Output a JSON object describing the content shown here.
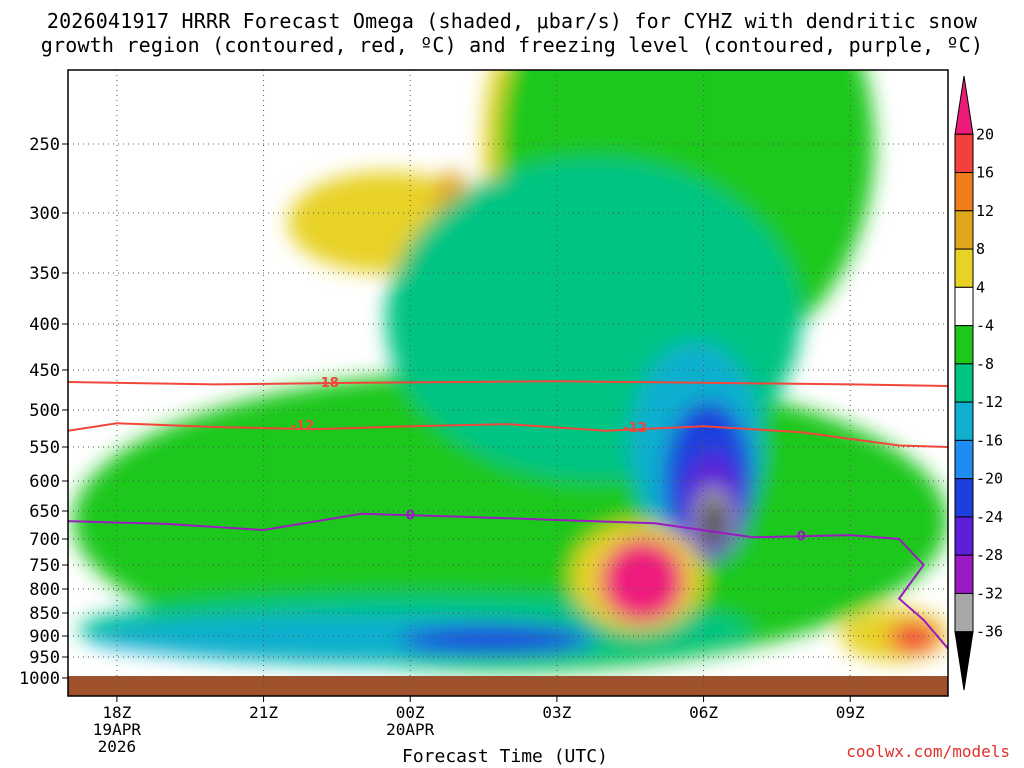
{
  "title_line1": "2026041917 HRRR Forecast Omega (shaded, μbar/s) for CYHZ with dendritic snow",
  "title_line2": "growth region (contoured, red, ºC) and freezing level (contoured, purple, ºC)",
  "credit": "coolwx.com/models",
  "colors": {
    "ground": "#a0522d",
    "temp_contour": "#f0463c",
    "freezing_contour": "#9a1bbf",
    "grid": "#555555"
  },
  "chart_data": {
    "type": "heatmap",
    "xlabel": "Forecast Time (UTC)",
    "ylabel": "",
    "x_ticks": [
      {
        "hour": 1,
        "label": "18Z",
        "sub1": "19APR",
        "sub2": "2026"
      },
      {
        "hour": 4,
        "label": "21Z",
        "sub1": "",
        "sub2": ""
      },
      {
        "hour": 7,
        "label": "00Z",
        "sub1": "20APR",
        "sub2": ""
      },
      {
        "hour": 10,
        "label": "03Z",
        "sub1": "",
        "sub2": ""
      },
      {
        "hour": 13,
        "label": "06Z",
        "sub1": "",
        "sub2": ""
      },
      {
        "hour": 16,
        "label": "09Z",
        "sub1": "",
        "sub2": ""
      }
    ],
    "xlim": [
      0,
      18
    ],
    "y_ticks": [
      250,
      300,
      350,
      400,
      450,
      500,
      550,
      600,
      650,
      700,
      750,
      800,
      850,
      900,
      950,
      1000
    ],
    "ylim": [
      1000,
      200
    ],
    "colorbar": {
      "labels": [
        "20",
        "16",
        "12",
        "8",
        "4",
        "-4",
        "-8",
        "-12",
        "-16",
        "-20",
        "-24",
        "-28",
        "-32",
        "-36"
      ],
      "colors": [
        "#ee1b7b",
        "#f4403c",
        "#f07d1c",
        "#e0a61e",
        "#e8d225",
        "#ffffff",
        "#1ec81a",
        "#00c483",
        "#11afcf",
        "#1e8cf0",
        "#1f3fdd",
        "#5d1ed8",
        "#9a1bc4",
        "#a8a8a8",
        "#000000"
      ]
    },
    "temp_contours": [
      {
        "label": "-18",
        "points": [
          [
            0,
            465
          ],
          [
            3,
            468
          ],
          [
            6,
            466
          ],
          [
            10,
            464
          ],
          [
            13,
            466
          ],
          [
            16,
            468
          ],
          [
            18,
            470
          ]
        ]
      },
      {
        "label": "-12",
        "points": [
          [
            0,
            528
          ],
          [
            1,
            518
          ],
          [
            3,
            523
          ],
          [
            5,
            526
          ],
          [
            7,
            522
          ],
          [
            9,
            519
          ],
          [
            11,
            528
          ],
          [
            13,
            522
          ],
          [
            15,
            530
          ],
          [
            17,
            548
          ],
          [
            18,
            550
          ]
        ]
      }
    ],
    "freezing_contours": [
      {
        "label": "0",
        "points": [
          [
            0,
            668
          ],
          [
            2,
            673
          ],
          [
            4,
            684
          ],
          [
            6,
            655
          ],
          [
            8,
            660
          ],
          [
            10,
            666
          ],
          [
            12,
            672
          ],
          [
            14,
            697
          ],
          [
            16,
            693
          ],
          [
            17,
            700
          ],
          [
            17.5,
            750
          ],
          [
            17,
            820
          ],
          [
            17.5,
            865
          ],
          [
            18,
            930
          ]
        ]
      }
    ],
    "contour_labels": [
      {
        "text": "-18",
        "hour": 5.3,
        "p": 465,
        "kind": "temp"
      },
      {
        "text": "-12",
        "hour": 4.8,
        "p": 520,
        "kind": "temp"
      },
      {
        "text": "-12",
        "hour": 11.6,
        "p": 523,
        "kind": "temp"
      },
      {
        "text": "0",
        "hour": 7.0,
        "p": 656,
        "kind": "freeze"
      },
      {
        "text": "0",
        "hour": 15.0,
        "p": 694,
        "kind": "freeze"
      }
    ],
    "shaded_areas": [
      {
        "level": 4,
        "hour": [
          4.5,
          8.5
        ],
        "p": [
          270,
          350
        ],
        "color": "#e8d225"
      },
      {
        "level": 8,
        "hour": [
          8.5,
          9.2
        ],
        "p": [
          190,
          330
        ],
        "color": "#e8d225"
      },
      {
        "level": 8,
        "hour": [
          7.5,
          8.2
        ],
        "p": [
          270,
          310
        ],
        "color": "#e0a61e"
      },
      {
        "level": -4,
        "hour": [
          0.1,
          18
        ],
        "p": [
          450,
          985
        ],
        "color": "#1ec81a"
      },
      {
        "level": -4,
        "hour": [
          8.8,
          16.5
        ],
        "p": [
          100,
          450
        ],
        "color": "#1ec81a"
      },
      {
        "level": -8,
        "hour": [
          6.5,
          15.0
        ],
        "p": [
          260,
          600
        ],
        "color": "#00c483"
      },
      {
        "level": -8,
        "hour": [
          0.2,
          14.0
        ],
        "p": [
          810,
          970
        ],
        "color": "#00c483"
      },
      {
        "level": -12,
        "hour": [
          0.4,
          10.6
        ],
        "p": [
          855,
          955
        ],
        "color": "#11afcf"
      },
      {
        "level": -12,
        "hour": [
          11.5,
          14.2
        ],
        "p": [
          420,
          720
        ],
        "color": "#11afcf"
      },
      {
        "level": -16,
        "hour": [
          6.8,
          10.8
        ],
        "p": [
          875,
          945
        ],
        "color": "#1e8cf0"
      },
      {
        "level": -20,
        "hour": [
          6.8,
          10.6
        ],
        "p": [
          880,
          940
        ],
        "color": "#1f3fdd"
      },
      {
        "level": -24,
        "hour": [
          12.2,
          14.0
        ],
        "p": [
          490,
          740
        ],
        "color": "#1f3fdd"
      },
      {
        "level": -28,
        "hour": [
          12.6,
          13.8
        ],
        "p": [
          560,
          740
        ],
        "color": "#5d1ed8"
      },
      {
        "level": -32,
        "hour": [
          12.8,
          13.6
        ],
        "p": [
          610,
          720
        ],
        "color": "#a8a8a8"
      },
      {
        "level": -36,
        "hour": [
          13.0,
          13.4
        ],
        "p": [
          630,
          715
        ],
        "color": "#000000"
      },
      {
        "level": 4,
        "hour": [
          10.3,
          13.0
        ],
        "p": [
          670,
          890
        ],
        "color": "#e8d225"
      },
      {
        "level": 20,
        "hour": [
          10.9,
          12.6
        ],
        "p": [
          700,
          870
        ],
        "color": "#ee1b7b"
      },
      {
        "level": 4,
        "hour": [
          15.8,
          18.0
        ],
        "p": [
          840,
          960
        ],
        "color": "#e8d225"
      },
      {
        "level": 16,
        "hour": [
          16.8,
          17.8
        ],
        "p": [
          870,
          940
        ],
        "color": "#f4403c"
      }
    ]
  }
}
